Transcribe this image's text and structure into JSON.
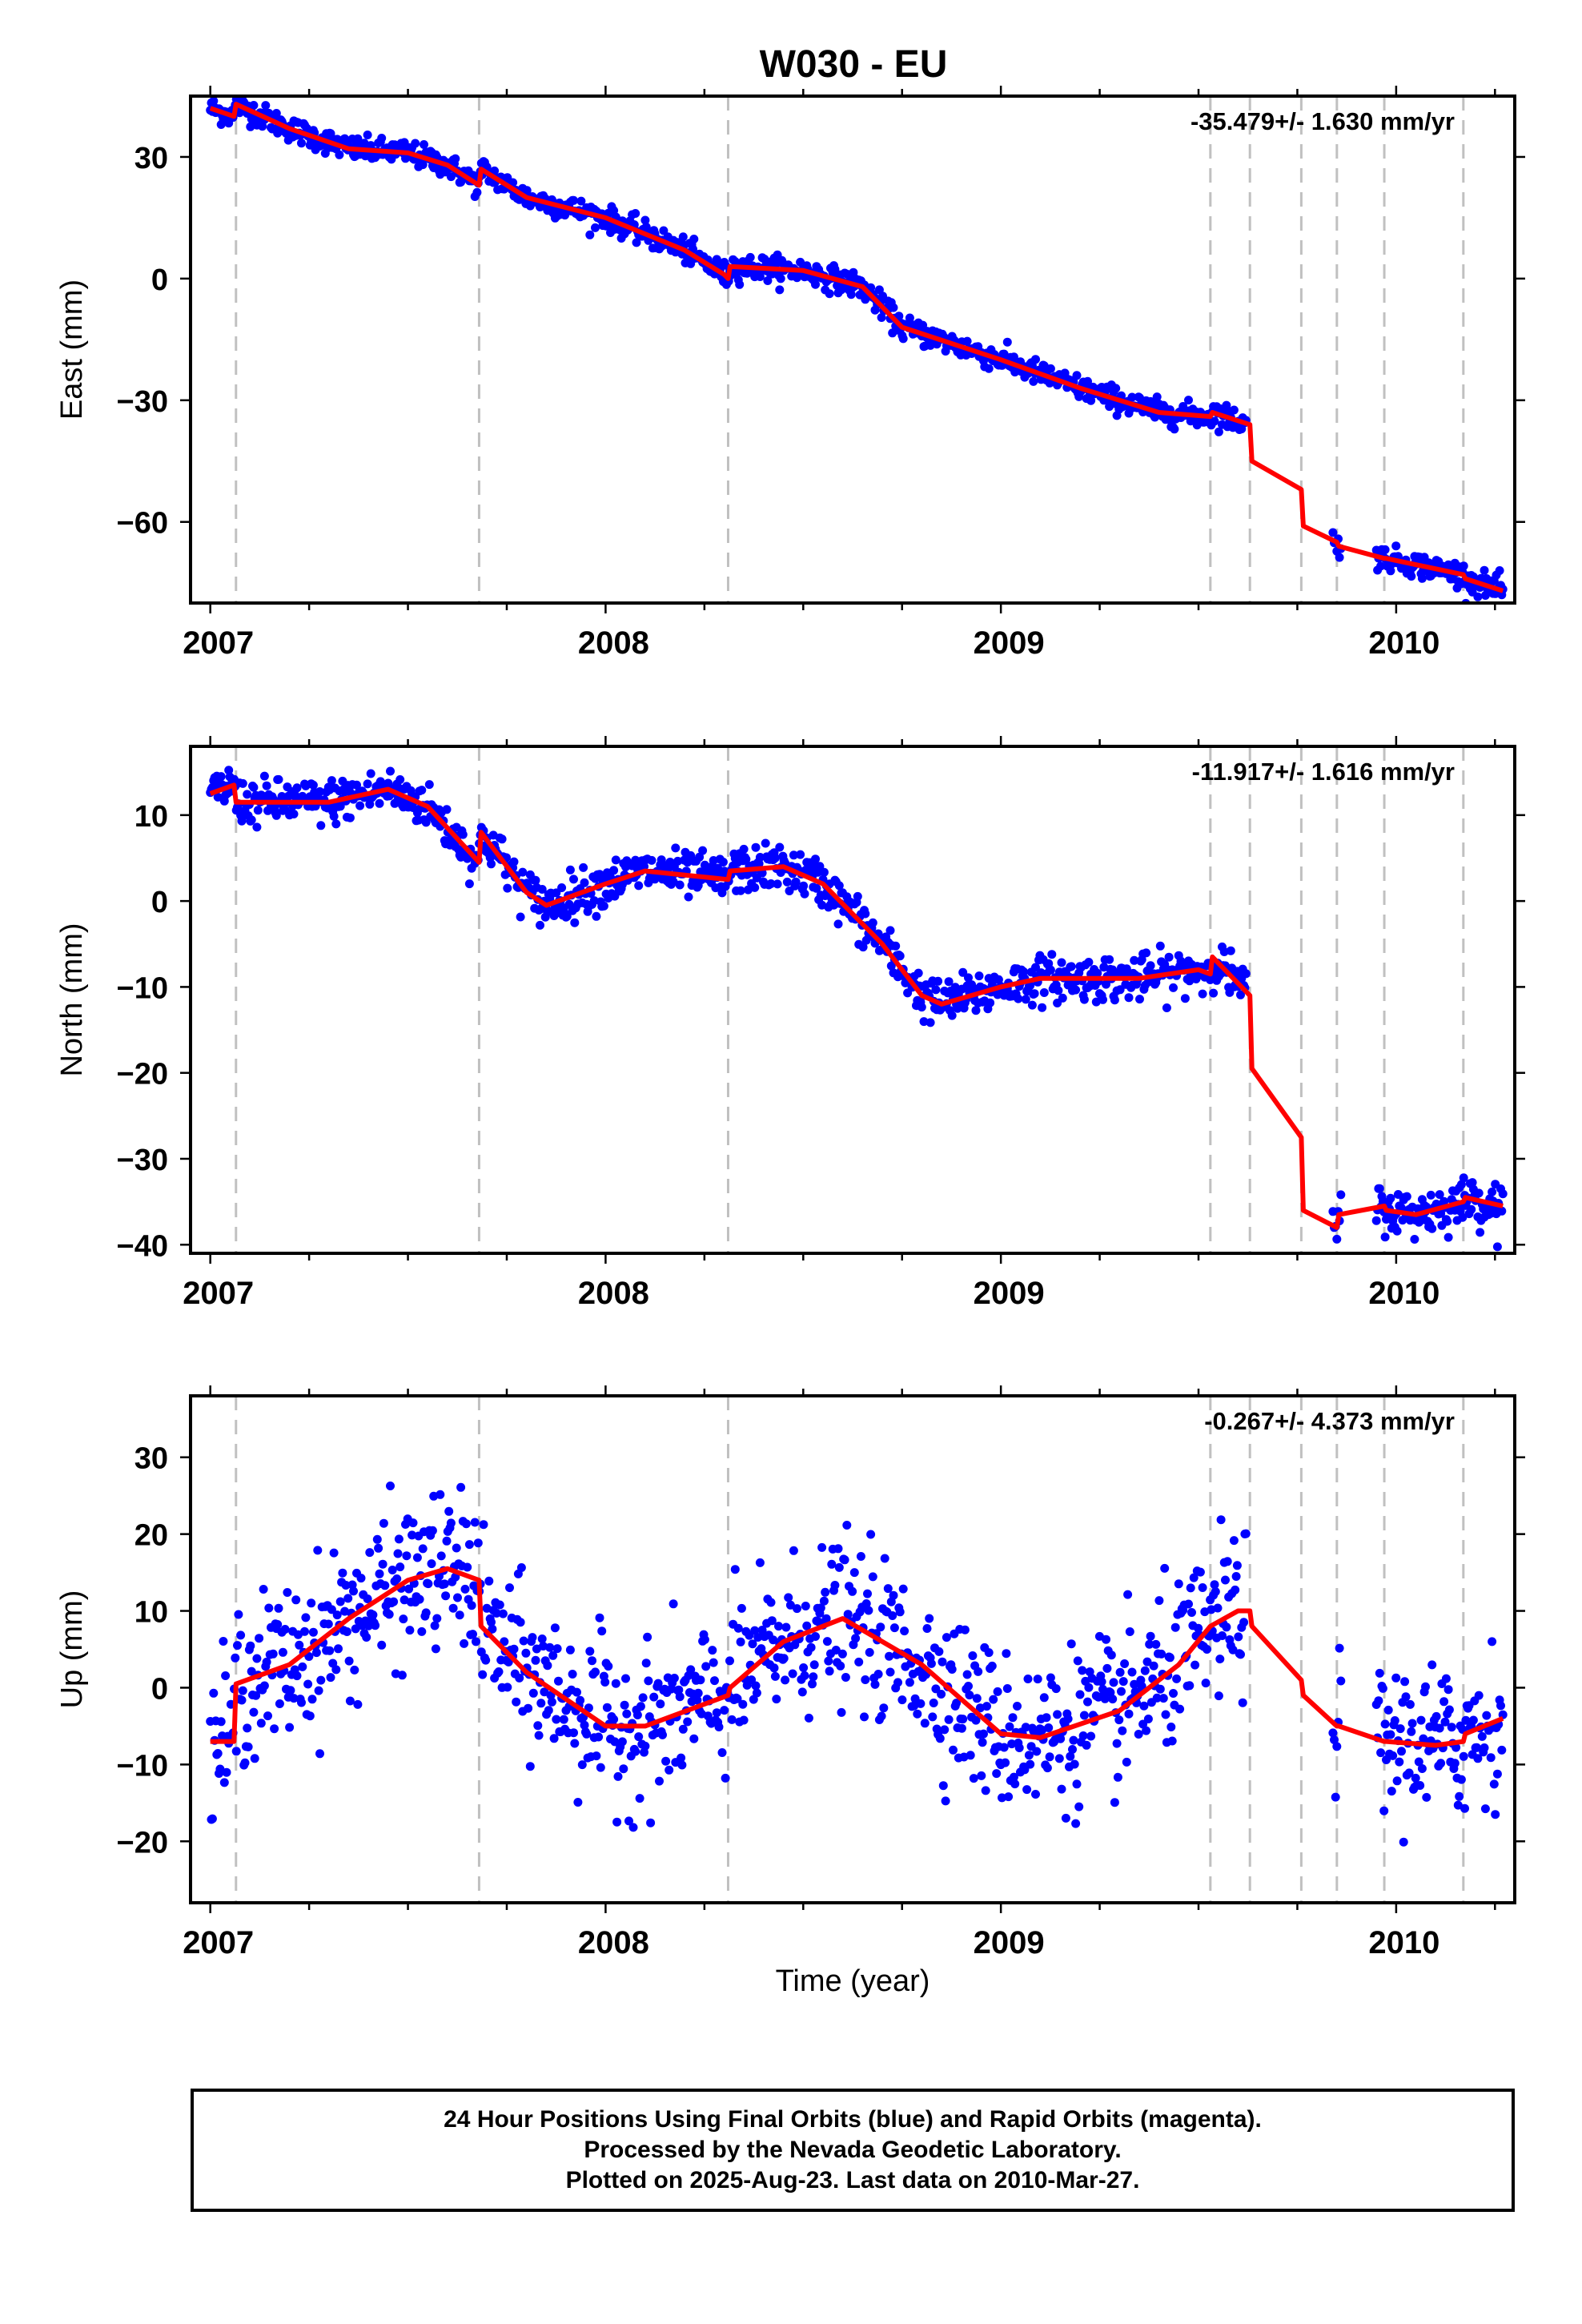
{
  "figure": {
    "title": "W030 - EU",
    "xlabel": "Time (year)"
  },
  "footer": {
    "line1": "24 Hour Positions Using Final Orbits (blue) and Rapid Orbits (magenta).",
    "line2": "Processed by the Nevada Geodetic Laboratory.",
    "line3": "Plotted on 2025-Aug-23. Last data on 2010-Mar-27."
  },
  "colors": {
    "points": "#0000ff",
    "model": "#ff0000",
    "steps": "#c0c0c0",
    "axes": "#000000"
  },
  "chart_data": [
    {
      "type": "scatter",
      "panel": "east",
      "ylabel": "East (mm)",
      "rate": "-35.479+/- 1.630 mm/yr",
      "xlim": [
        2006.95,
        2010.3
      ],
      "ylim": [
        -80,
        45
      ],
      "xticks": [
        2007,
        2008,
        2009,
        2010
      ],
      "yticks": [
        30,
        0,
        -30,
        -60
      ],
      "ytick_labels": [
        "30",
        "0",
        "−30",
        "−60"
      ],
      "steps": [
        2007.065,
        2007.68,
        2008.31,
        2009.53,
        2009.63,
        2009.76,
        2009.85,
        2009.97,
        2010.17
      ],
      "data_ranges": [
        [
          2007.0,
          2009.62
        ],
        [
          2009.84,
          2009.86
        ],
        [
          2009.95,
          2010.27
        ]
      ],
      "scatter_sd": 1.5,
      "model": [
        [
          2007.0,
          42
        ],
        [
          2007.06,
          40
        ],
        [
          2007.065,
          43
        ],
        [
          2007.2,
          37
        ],
        [
          2007.35,
          32
        ],
        [
          2007.5,
          31
        ],
        [
          2007.6,
          28
        ],
        [
          2007.68,
          23
        ],
        [
          2007.685,
          27
        ],
        [
          2007.8,
          20
        ],
        [
          2008.0,
          15
        ],
        [
          2008.2,
          7
        ],
        [
          2008.3,
          1
        ],
        [
          2008.31,
          0
        ],
        [
          2008.315,
          3
        ],
        [
          2008.5,
          2
        ],
        [
          2008.65,
          -2
        ],
        [
          2008.75,
          -12
        ],
        [
          2009.0,
          -20
        ],
        [
          2009.2,
          -27
        ],
        [
          2009.4,
          -33
        ],
        [
          2009.53,
          -34
        ],
        [
          2009.535,
          -33
        ],
        [
          2009.63,
          -36
        ],
        [
          2009.635,
          -45
        ],
        [
          2009.76,
          -52
        ],
        [
          2009.765,
          -61
        ],
        [
          2009.85,
          -65
        ],
        [
          2009.855,
          -66
        ],
        [
          2009.97,
          -69
        ],
        [
          2009.975,
          -69
        ],
        [
          2010.17,
          -73
        ],
        [
          2010.175,
          -74
        ],
        [
          2010.27,
          -77
        ]
      ]
    },
    {
      "type": "scatter",
      "panel": "north",
      "ylabel": "North (mm)",
      "rate": "-11.917+/- 1.616 mm/yr",
      "xlim": [
        2006.95,
        2010.3
      ],
      "ylim": [
        -41,
        18
      ],
      "xticks": [
        2007,
        2008,
        2009,
        2010
      ],
      "yticks": [
        10,
        0,
        -10,
        -20,
        -30,
        -40
      ],
      "ytick_labels": [
        "10",
        "0",
        "−10",
        "−20",
        "−30",
        "−40"
      ],
      "steps": [
        2007.065,
        2007.68,
        2008.31,
        2009.53,
        2009.63,
        2009.76,
        2009.85,
        2009.97,
        2010.17
      ],
      "data_ranges": [
        [
          2007.0,
          2009.62
        ],
        [
          2009.84,
          2009.86
        ],
        [
          2009.95,
          2010.27
        ]
      ],
      "scatter_sd": 1.3,
      "model": [
        [
          2007.0,
          12.5
        ],
        [
          2007.06,
          13.5
        ],
        [
          2007.065,
          11.5
        ],
        [
          2007.3,
          11.5
        ],
        [
          2007.45,
          13
        ],
        [
          2007.55,
          11
        ],
        [
          2007.68,
          4.5
        ],
        [
          2007.685,
          8
        ],
        [
          2007.8,
          1
        ],
        [
          2007.85,
          -0.5
        ],
        [
          2008.0,
          2
        ],
        [
          2008.1,
          3.5
        ],
        [
          2008.31,
          2.5
        ],
        [
          2008.315,
          3.5
        ],
        [
          2008.45,
          4
        ],
        [
          2008.55,
          2
        ],
        [
          2008.7,
          -5
        ],
        [
          2008.8,
          -11
        ],
        [
          2008.85,
          -12
        ],
        [
          2009.0,
          -10
        ],
        [
          2009.1,
          -9
        ],
        [
          2009.35,
          -9
        ],
        [
          2009.5,
          -8
        ],
        [
          2009.53,
          -8.5
        ],
        [
          2009.535,
          -6.5
        ],
        [
          2009.63,
          -11
        ],
        [
          2009.635,
          -19.5
        ],
        [
          2009.76,
          -27.5
        ],
        [
          2009.765,
          -36
        ],
        [
          2009.85,
          -38
        ],
        [
          2009.855,
          -36.5
        ],
        [
          2009.97,
          -35.5
        ],
        [
          2009.975,
          -36
        ],
        [
          2010.05,
          -36.5
        ],
        [
          2010.17,
          -35
        ],
        [
          2010.175,
          -34.5
        ],
        [
          2010.27,
          -35.5
        ]
      ]
    },
    {
      "type": "scatter",
      "panel": "up",
      "ylabel": "Up (mm)",
      "rate": "-0.267+/- 4.373 mm/yr",
      "xlim": [
        2006.95,
        2010.3
      ],
      "ylim": [
        -28,
        38
      ],
      "xticks": [
        2007,
        2008,
        2009,
        2010
      ],
      "yticks": [
        30,
        20,
        10,
        0,
        -10,
        -20
      ],
      "ytick_labels": [
        "30",
        "20",
        "10",
        "0",
        "−10",
        "−20"
      ],
      "steps": [
        2007.065,
        2007.68,
        2008.31,
        2009.53,
        2009.63,
        2009.76,
        2009.85,
        2009.97,
        2010.17
      ],
      "data_ranges": [
        [
          2007.0,
          2009.62
        ],
        [
          2009.84,
          2009.86
        ],
        [
          2009.95,
          2010.27
        ]
      ],
      "scatter_sd": 5.0,
      "model": [
        [
          2007.0,
          -7
        ],
        [
          2007.06,
          -7
        ],
        [
          2007.065,
          0.5
        ],
        [
          2007.2,
          3
        ],
        [
          2007.35,
          9
        ],
        [
          2007.5,
          14
        ],
        [
          2007.6,
          15.5
        ],
        [
          2007.68,
          14
        ],
        [
          2007.685,
          8
        ],
        [
          2007.8,
          2
        ],
        [
          2008.0,
          -5
        ],
        [
          2008.1,
          -5
        ],
        [
          2008.31,
          -1
        ],
        [
          2008.315,
          0
        ],
        [
          2008.45,
          6
        ],
        [
          2008.6,
          9
        ],
        [
          2008.8,
          3
        ],
        [
          2009.0,
          -6
        ],
        [
          2009.1,
          -6.5
        ],
        [
          2009.3,
          -3
        ],
        [
          2009.45,
          3
        ],
        [
          2009.53,
          8
        ],
        [
          2009.6,
          10
        ],
        [
          2009.63,
          10
        ],
        [
          2009.635,
          8
        ],
        [
          2009.76,
          1
        ],
        [
          2009.765,
          -1
        ],
        [
          2009.85,
          -5
        ],
        [
          2009.855,
          -5
        ],
        [
          2009.97,
          -7
        ],
        [
          2009.975,
          -7
        ],
        [
          2010.1,
          -7.5
        ],
        [
          2010.17,
          -7
        ],
        [
          2010.175,
          -6
        ],
        [
          2010.27,
          -4
        ]
      ]
    }
  ]
}
